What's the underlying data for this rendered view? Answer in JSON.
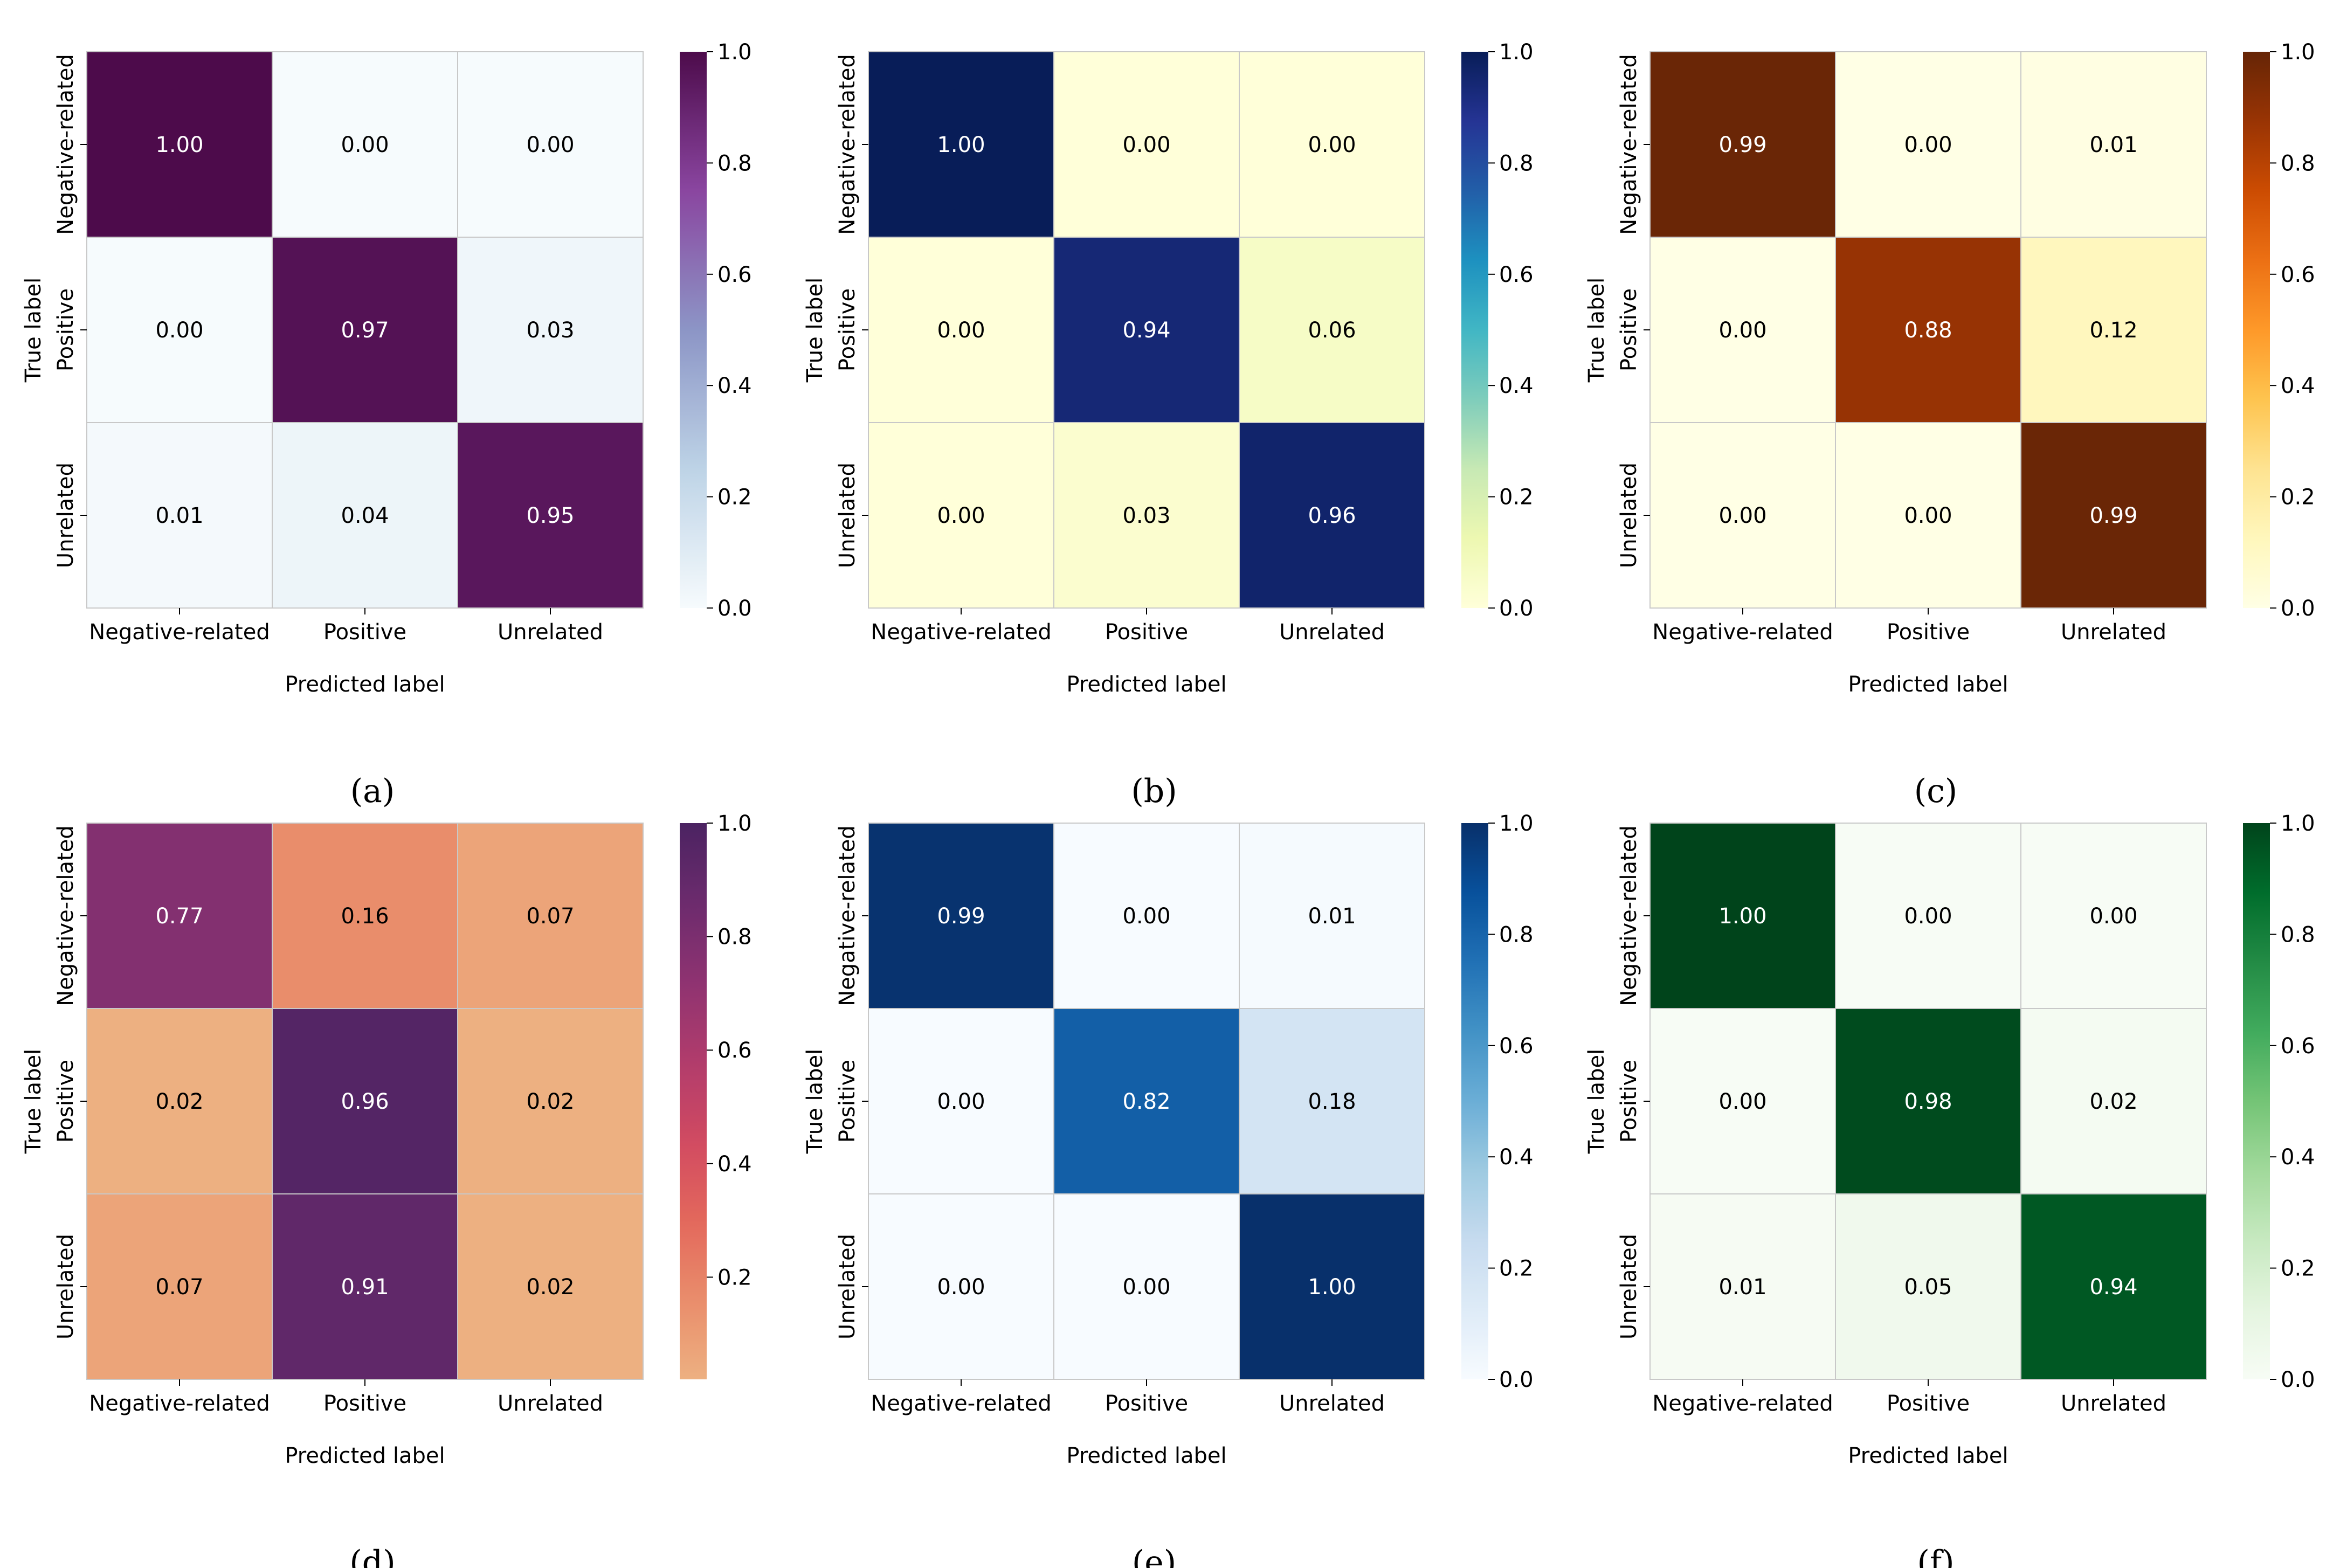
{
  "chart_data": [
    {
      "type": "heatmap",
      "panel_label": "a",
      "caption": "(a)",
      "colormap": "purple",
      "colors": [
        "#f6fbfd",
        "#bdd3e6",
        "#8c95c6",
        "#8a46a0",
        "#4d0b4b"
      ],
      "xlabel": "Predicted label",
      "ylabel": "True label",
      "x_categories": [
        "Negative-related",
        "Positive",
        "Unrelated"
      ],
      "y_categories": [
        "Negative-related",
        "Positive",
        "Unrelated"
      ],
      "values": [
        [
          1.0,
          0.0,
          0.0
        ],
        [
          0.0,
          0.97,
          0.03
        ],
        [
          0.01,
          0.04,
          0.95
        ]
      ],
      "vmin": 0.0,
      "vmax": 1.0,
      "colorbar_ticks": [
        0.0,
        0.2,
        0.4,
        0.6,
        0.8,
        1.0
      ],
      "colorbar_tick_labels": [
        "0.0",
        "0.2",
        "0.4",
        "0.6",
        "0.8",
        "1.0"
      ]
    },
    {
      "type": "heatmap",
      "panel_label": "b",
      "caption": "(b)",
      "colormap": "yellow-green-blue",
      "colors": [
        "#ffffd9",
        "#edf8b1",
        "#c7e9b4",
        "#7fcdbb",
        "#41b6c4",
        "#1d91c0",
        "#225ea8",
        "#253494",
        "#081d58"
      ],
      "xlabel": "Predicted label",
      "ylabel": "True label",
      "x_categories": [
        "Negative-related",
        "Positive",
        "Unrelated"
      ],
      "y_categories": [
        "Negative-related",
        "Positive",
        "Unrelated"
      ],
      "values": [
        [
          1.0,
          0.0,
          0.0
        ],
        [
          0.0,
          0.94,
          0.06
        ],
        [
          0.0,
          0.03,
          0.96
        ]
      ],
      "vmin": 0.0,
      "vmax": 1.0,
      "colorbar_ticks": [
        0.0,
        0.2,
        0.4,
        0.6,
        0.8,
        1.0
      ],
      "colorbar_tick_labels": [
        "0.0",
        "0.2",
        "0.4",
        "0.6",
        "0.8",
        "1.0"
      ]
    },
    {
      "type": "heatmap",
      "panel_label": "c",
      "caption": "(c)",
      "colormap": "yellow-orange-brown",
      "colors": [
        "#ffffe5",
        "#fff7bc",
        "#fee391",
        "#fec44f",
        "#fe9929",
        "#ec7014",
        "#cc4c02",
        "#993404",
        "#662506"
      ],
      "xlabel": "Predicted label",
      "ylabel": "True label",
      "x_categories": [
        "Negative-related",
        "Positive",
        "Unrelated"
      ],
      "y_categories": [
        "Negative-related",
        "Positive",
        "Unrelated"
      ],
      "values": [
        [
          0.99,
          0.0,
          0.01
        ],
        [
          0.0,
          0.88,
          0.12
        ],
        [
          0.0,
          0.0,
          0.99
        ]
      ],
      "vmin": 0.0,
      "vmax": 1.0,
      "colorbar_ticks": [
        0.0,
        0.2,
        0.4,
        0.6,
        0.8,
        1.0
      ],
      "colorbar_tick_labels": [
        "0.0",
        "0.2",
        "0.4",
        "0.6",
        "0.8",
        "1.0"
      ]
    },
    {
      "type": "heatmap",
      "panel_label": "d",
      "caption": "(d)",
      "colormap": "flare",
      "colors": [
        "#edb081",
        "#e98d6b",
        "#e3685c",
        "#d14a61",
        "#b13c6c",
        "#8f3371",
        "#6c2b6d",
        "#4b2362"
      ],
      "xlabel": "Predicted label",
      "ylabel": "True label",
      "x_categories": [
        "Negative-related",
        "Positive",
        "Unrelated"
      ],
      "y_categories": [
        "Negative-related",
        "Positive",
        "Unrelated"
      ],
      "values": [
        [
          0.77,
          0.16,
          0.07
        ],
        [
          0.02,
          0.96,
          0.02
        ],
        [
          0.07,
          0.91,
          0.02
        ]
      ],
      "vmin": 0.02,
      "vmax": 1.0,
      "colorbar_ticks": [
        0.2,
        0.4,
        0.6,
        0.8,
        1.0
      ],
      "colorbar_tick_labels": [
        "0.2",
        "0.4",
        "0.6",
        "0.8",
        "1.0"
      ]
    },
    {
      "type": "heatmap",
      "panel_label": "e",
      "caption": "(e)",
      "colormap": "blues",
      "colors": [
        "#f7fbff",
        "#deebf7",
        "#c6dbef",
        "#9ecae1",
        "#6baed6",
        "#4292c6",
        "#2171b5",
        "#08519c",
        "#08306b"
      ],
      "xlabel": "Predicted label",
      "ylabel": "True label",
      "x_categories": [
        "Negative-related",
        "Positive",
        "Unrelated"
      ],
      "y_categories": [
        "Negative-related",
        "Positive",
        "Unrelated"
      ],
      "values": [
        [
          0.99,
          0.0,
          0.01
        ],
        [
          0.0,
          0.82,
          0.18
        ],
        [
          0.0,
          0.0,
          1.0
        ]
      ],
      "vmin": 0.0,
      "vmax": 1.0,
      "colorbar_ticks": [
        0.0,
        0.2,
        0.4,
        0.6,
        0.8,
        1.0
      ],
      "colorbar_tick_labels": [
        "0.0",
        "0.2",
        "0.4",
        "0.6",
        "0.8",
        "1.0"
      ]
    },
    {
      "type": "heatmap",
      "panel_label": "f",
      "caption": "(f)",
      "colormap": "greens",
      "colors": [
        "#f7fcf5",
        "#e5f5e0",
        "#c7e9c0",
        "#a1d99b",
        "#74c476",
        "#41ab5d",
        "#238b45",
        "#006d2c",
        "#00441b"
      ],
      "xlabel": "Predicted label",
      "ylabel": "True label",
      "x_categories": [
        "Negative-related",
        "Positive",
        "Unrelated"
      ],
      "y_categories": [
        "Negative-related",
        "Positive",
        "Unrelated"
      ],
      "values": [
        [
          1.0,
          0.0,
          0.0
        ],
        [
          0.0,
          0.98,
          0.02
        ],
        [
          0.01,
          0.05,
          0.94
        ]
      ],
      "vmin": 0.0,
      "vmax": 1.0,
      "colorbar_ticks": [
        0.0,
        0.2,
        0.4,
        0.6,
        0.8,
        1.0
      ],
      "colorbar_tick_labels": [
        "0.0",
        "0.2",
        "0.4",
        "0.6",
        "0.8",
        "1.0"
      ]
    }
  ]
}
